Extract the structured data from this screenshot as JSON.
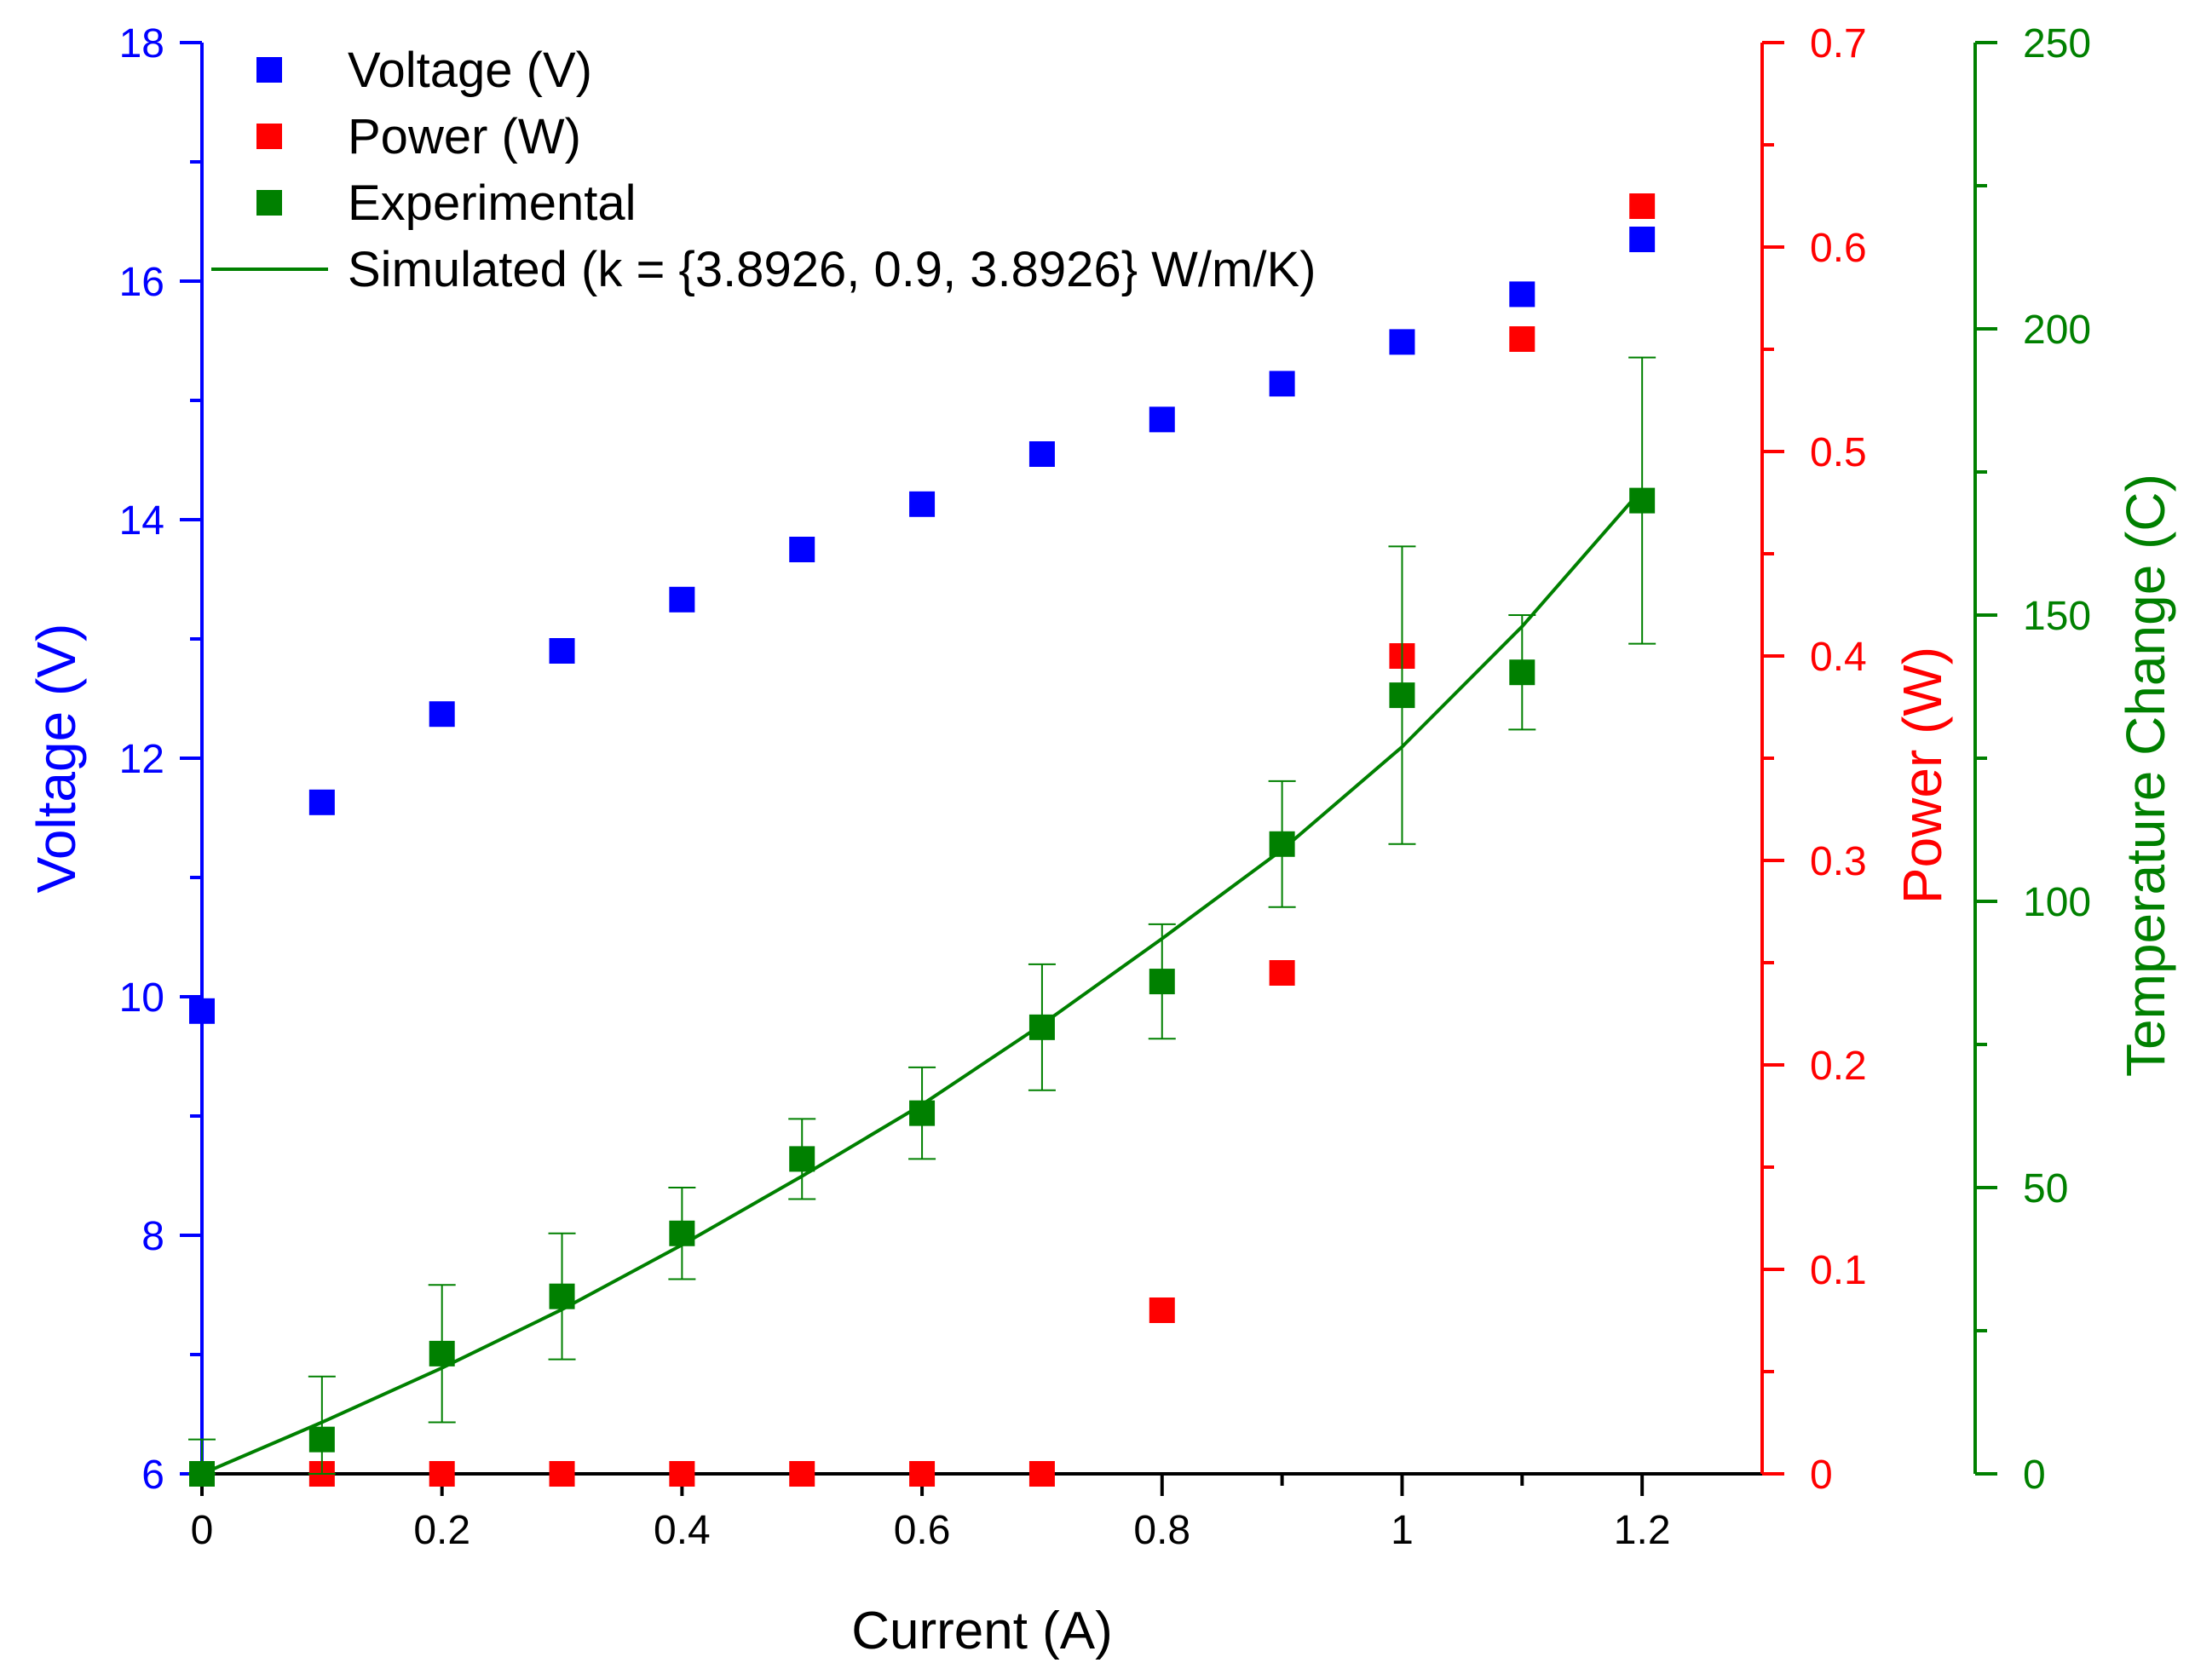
{
  "chart_data": {
    "type": "scatter",
    "xlabel": "Current (A)",
    "x_ticks": [
      0,
      0.2,
      0.4,
      0.6,
      0.8,
      1,
      1.2
    ],
    "x_tick_labels": [
      "0",
      "0.2",
      "0.4",
      "0.6",
      "0.8",
      "1",
      "1.2"
    ],
    "xlim": [
      0,
      1.3
    ],
    "axes": {
      "voltage": {
        "label": "Voltage (V)",
        "color": "#0000ff",
        "lim": [
          6,
          18
        ],
        "ticks": [
          6,
          8,
          10,
          12,
          14,
          16,
          18
        ],
        "tick_labels": [
          "6",
          "8",
          "10",
          "12",
          "14",
          "16",
          "18"
        ]
      },
      "power": {
        "label": "Power (W)",
        "color": "#ff0000",
        "lim": [
          0,
          0.7
        ],
        "ticks": [
          0,
          0.1,
          0.2,
          0.3,
          0.4,
          0.5,
          0.6,
          0.7
        ],
        "tick_labels": [
          "0",
          "0.1",
          "0.2",
          "0.3",
          "0.4",
          "0.5",
          "0.6",
          "0.7"
        ]
      },
      "temperature": {
        "label": "Temperature Change (C)",
        "color": "#008000",
        "lim": [
          0,
          250
        ],
        "ticks": [
          0,
          50,
          100,
          150,
          200,
          250
        ],
        "tick_labels": [
          "0",
          "50",
          "100",
          "150",
          "200",
          "250"
        ]
      }
    },
    "series": [
      {
        "name": "Voltage (V)",
        "kind": "scatter",
        "axis": "voltage",
        "color": "#0000ff",
        "x": [
          0,
          0.1,
          0.2,
          0.3,
          0.4,
          0.5,
          0.6,
          0.7,
          0.8,
          0.9,
          1.0,
          1.1,
          1.2
        ],
        "y": [
          9.88,
          11.63,
          12.37,
          12.9,
          13.33,
          13.75,
          14.13,
          14.55,
          14.84,
          15.14,
          15.49,
          15.89,
          16.35
        ]
      },
      {
        "name": "Power (W)",
        "kind": "scatter",
        "axis": "power",
        "color": "#ff0000",
        "x": [
          0,
          0.1,
          0.2,
          0.3,
          0.4,
          0.5,
          0.6,
          0.7,
          0.8,
          0.9,
          1.0,
          1.1,
          1.2
        ],
        "y": [
          0,
          0,
          0,
          0,
          0,
          0,
          0,
          0,
          0.08,
          0.245,
          0.4,
          0.555,
          0.62
        ]
      },
      {
        "name": "Experimental",
        "kind": "scatter",
        "axis": "temperature",
        "color": "#008000",
        "x": [
          0,
          0.1,
          0.2,
          0.3,
          0.4,
          0.5,
          0.6,
          0.7,
          0.8,
          0.9,
          1.0,
          1.1,
          1.2
        ],
        "y": [
          0,
          6,
          21,
          31,
          42,
          55,
          63,
          78,
          86,
          110,
          136,
          140,
          170
        ],
        "yerr": [
          6,
          11,
          12,
          11,
          8,
          7,
          8,
          11,
          10,
          11,
          26,
          10,
          25
        ]
      },
      {
        "name": "Simulated (k = {3.8926, 0.9, 3.8926} W/m/K)",
        "kind": "line",
        "axis": "temperature",
        "color": "#008000",
        "x": [
          0,
          0.1,
          0.2,
          0.3,
          0.4,
          0.5,
          0.6,
          0.7,
          0.8,
          0.9,
          1.0,
          1.1,
          1.2
        ],
        "y": [
          0,
          9,
          18.5,
          28.7,
          40,
          52,
          64.5,
          78.5,
          93.5,
          109,
          127,
          148,
          172
        ]
      }
    ],
    "legend": {
      "position": "top-left"
    }
  }
}
